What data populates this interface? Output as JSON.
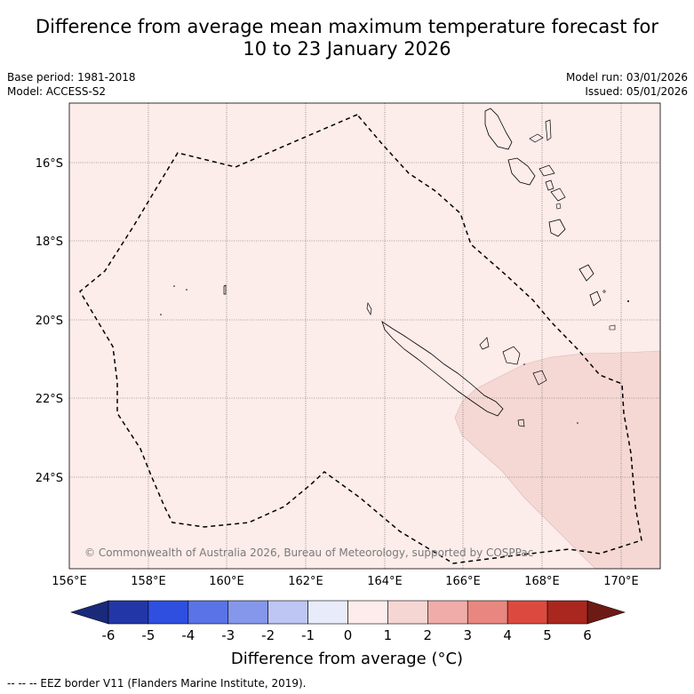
{
  "title_line1": "Difference from average mean maximum temperature forecast for",
  "title_line2": "10 to 23 January 2026",
  "meta": {
    "base_period": "Base period: 1981-2018",
    "model": "Model: ACCESS-S2",
    "model_run": "Model run: 03/01/2026",
    "issued": "Issued: 05/01/2026"
  },
  "map": {
    "lat_labels": [
      "16°S",
      "18°S",
      "20°S",
      "22°S",
      "24°S"
    ],
    "lon_labels": [
      "156°E",
      "158°E",
      "160°E",
      "162°E",
      "164°E",
      "166°E",
      "168°E",
      "170°E"
    ],
    "copyright": "© Commonwealth of Australia 2026, Bureau of Meteorology, supported by COSPPac"
  },
  "colorbar": {
    "ticks": [
      "-6",
      "-5",
      "-4",
      "-3",
      "-2",
      "-1",
      "0",
      "1",
      "2",
      "3",
      "4",
      "5",
      "6"
    ],
    "colors": [
      "#2336a8",
      "#2f4fe0",
      "#5a73e6",
      "#8497ea",
      "#bec6f3",
      "#e8ebfa",
      "#fdeceb",
      "#f6d6d3",
      "#efaca8",
      "#e8877f",
      "#dc4a3f",
      "#a9271f"
    ],
    "end_left_color": "#1a2a7a",
    "end_right_color": "#6e1a14",
    "label": "Difference from average (°C)"
  },
  "colors": {
    "background_anomaly": "#fcecea",
    "warm_anomaly": "#f5d8d4"
  },
  "footer": "--  --  -- EEZ border V11 (Flanders Marine Institute, 2019)."
}
